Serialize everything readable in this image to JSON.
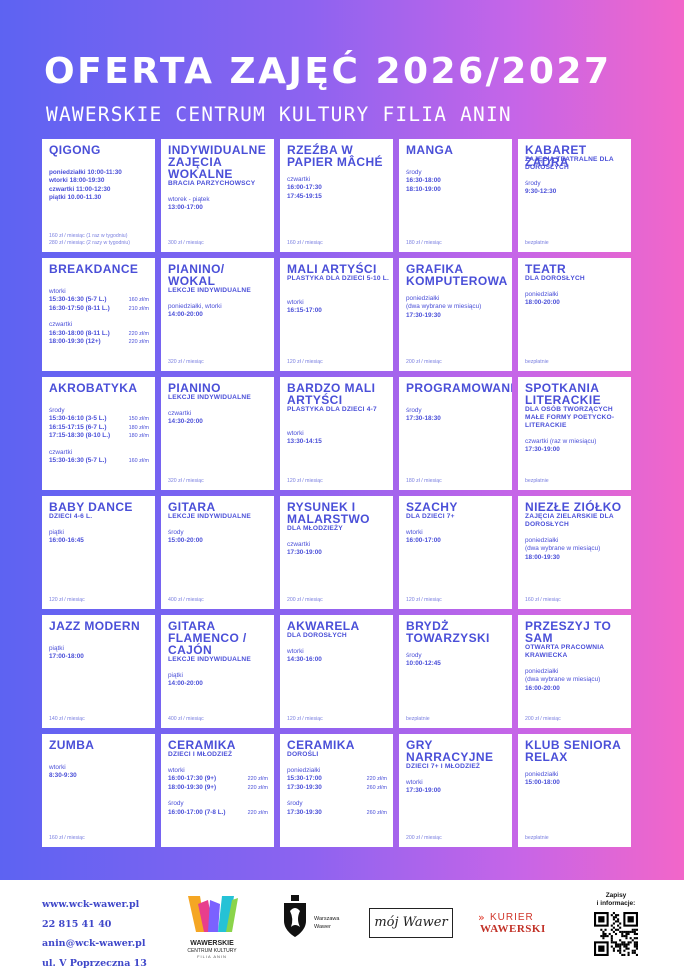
{
  "header": {
    "title": "OFERTA ZAJĘĆ 2026/2027",
    "subtitle": "WAWERSKIE CENTRUM KULTURY FILIA ANIN"
  },
  "cards": [
    {
      "name": "QIGONG",
      "sub": "",
      "lines": [
        [
          "poniedziałki 10:00-11:30",
          ""
        ],
        [
          "wtorki 18:00-19:30",
          ""
        ],
        [
          "czwartki 11:00-12:30",
          ""
        ],
        [
          "piątki 10.00-11.30",
          ""
        ]
      ],
      "price": "160 zł / miesiąc (1 raz w tygodniu)\n280 zł / miesiąc (2 razy w tygodniu)"
    },
    {
      "name": "INDYWIDUALNE ZAJĘCIA WOKALNE",
      "sub": "BRACIA PARZYCHOWSCY",
      "lines": [
        [
          "wtorek - piątek",
          ""
        ],
        [
          "13:00-17:00",
          ""
        ]
      ],
      "price": "300 zł / miesiąc"
    },
    {
      "name": "RZEŹBA W PAPIER MÂCHÉ",
      "sub": "",
      "lines": [
        [
          "czwartki",
          ""
        ],
        [
          "16:00-17:30",
          ""
        ],
        [
          "17:45-19:15",
          ""
        ]
      ],
      "price": "160 zł / miesiąc"
    },
    {
      "name": "MANGA",
      "sub": "",
      "lines": [
        [
          "środy",
          ""
        ],
        [
          "16:30-18:00",
          ""
        ],
        [
          "18:10-19:00",
          ""
        ]
      ],
      "price": "180 zł / miesiąc"
    },
    {
      "name": "KABARET ZADRA",
      "sub": "ZAJĘCIA TEATRALNE DLA DOROSŁYCH",
      "lines": [
        [
          "środy",
          ""
        ],
        [
          "9:30-12:30",
          ""
        ]
      ],
      "price": "bezpłatnie"
    },
    {
      "name": "BREAKDANCE",
      "sub": "",
      "lines": [
        [
          "wtorki",
          ""
        ],
        [
          "15:30-16:30 (5-7 L.)",
          "160 zł/m"
        ],
        [
          "16:30-17:50 (8-11 L.)",
          "210 zł/m"
        ],
        [
          "",
          ""
        ],
        [
          "czwartki",
          ""
        ],
        [
          "16:30-18:00 (8-11 L.)",
          "220 zł/m"
        ],
        [
          "18:00-19:30 (12+)",
          "220 zł/m"
        ]
      ],
      "price": ""
    },
    {
      "name": "PIANINO/ WOKAL",
      "sub": "LEKCJE INDYWIDUALNE",
      "lines": [
        [
          "poniedziałki, wtorki",
          ""
        ],
        [
          "14:00-20:00",
          ""
        ]
      ],
      "price": "320 zł / miesiąc"
    },
    {
      "name": "MALI ARTYŚCI",
      "sub": "PLASTYKA DLA DZIECI 5-10 L.",
      "lines": [
        [
          "wtorki",
          ""
        ],
        [
          "16:15-17:00",
          ""
        ]
      ],
      "price": "120 zł / miesiąc"
    },
    {
      "name": "GRAFIKA KOMPUTEROWA",
      "sub": "",
      "lines": [
        [
          "poniedziałki",
          ""
        ],
        [
          "(dwa wybrane w miesiącu)",
          ""
        ],
        [
          "17:30-19:30",
          ""
        ]
      ],
      "price": "200 zł / miesiąc"
    },
    {
      "name": "TEATR",
      "sub": "DLA DOROSŁYCH",
      "lines": [
        [
          "poniedziałki",
          ""
        ],
        [
          "18:00-20:00",
          ""
        ]
      ],
      "price": "bezpłatnie"
    },
    {
      "name": "AKROBATYKA",
      "sub": "",
      "lines": [
        [
          "środy",
          ""
        ],
        [
          "15:30-16:10 (3-5 L.)",
          "150 zł/m"
        ],
        [
          "16:15-17:15 (6-7 L.)",
          "180 zł/m"
        ],
        [
          "17:15-18:30 (8-10 L.)",
          "180 zł/m"
        ],
        [
          "",
          ""
        ],
        [
          "czwartki",
          ""
        ],
        [
          "15:30-16:30 (5-7 L.)",
          "160 zł/m"
        ]
      ],
      "price": ""
    },
    {
      "name": "PIANINO",
      "sub": "LEKCJE INDYWIDUALNE",
      "lines": [
        [
          "czwartki",
          ""
        ],
        [
          "14:30-20:00",
          ""
        ]
      ],
      "price": "320 zł / miesiąc"
    },
    {
      "name": "BARDZO MALI ARTYŚCI",
      "sub": "PLASTYKA DLA DZIECI 4-7",
      "lines": [
        [
          "wtorki",
          ""
        ],
        [
          "13:30-14:15",
          ""
        ]
      ],
      "price": "120 zł / miesiąc"
    },
    {
      "name": "PROGRAMOWANIE",
      "sub": "",
      "lines": [
        [
          "środy",
          ""
        ],
        [
          "17:30-18:30",
          ""
        ]
      ],
      "price": "180 zł / miesiąc"
    },
    {
      "name": "SPOTKANIA LITERACKIE",
      "sub": "DLA OSÓB TWORZĄCYCH MAŁE FORMY POETYCKO-LITERACKIE",
      "lines": [
        [
          "czwartki (raz w miesiącu)",
          ""
        ],
        [
          "17:30-19:00",
          ""
        ]
      ],
      "price": "bezpłatnie"
    },
    {
      "name": "BABY DANCE",
      "sub": "DZIECI 4-6 L.",
      "lines": [
        [
          "piątki",
          ""
        ],
        [
          "16:00-16:45",
          ""
        ]
      ],
      "price": "120 zł / miesiąc"
    },
    {
      "name": "GITARA",
      "sub": "LEKCJE INDYWIDUALNE",
      "lines": [
        [
          "środy",
          ""
        ],
        [
          "15:00-20:00",
          ""
        ]
      ],
      "price": "400 zł / miesiąc"
    },
    {
      "name": "RYSUNEK I MALARSTWO",
      "sub": "DLA MŁODZIEŻY",
      "lines": [
        [
          "czwartki",
          ""
        ],
        [
          "17:30-19:00",
          ""
        ]
      ],
      "price": "200 zł / miesiąc"
    },
    {
      "name": "SZACHY",
      "sub": "DLA DZIECI 7+",
      "lines": [
        [
          "wtorki",
          ""
        ],
        [
          "16:00-17:00",
          ""
        ]
      ],
      "price": "120 zł / miesiąc"
    },
    {
      "name": "NIEZŁE ZIÓŁKO",
      "sub": "ZAJĘCIA ZIELARSKIE DLA DOROSŁYCH",
      "lines": [
        [
          "poniedziałki",
          ""
        ],
        [
          "(dwa wybrane w miesiącu)",
          ""
        ],
        [
          "18:00-19:30",
          ""
        ]
      ],
      "price": "160 zł / miesiąc"
    },
    {
      "name": "JAZZ MODERN",
      "sub": "",
      "lines": [
        [
          "piątki",
          ""
        ],
        [
          "17:00-18:00",
          ""
        ]
      ],
      "price": "140 zł / miesiąc"
    },
    {
      "name": "GITARA FLAMENCO / CAJÓN",
      "sub": "LEKCJE INDYWIDUALNE",
      "lines": [
        [
          "piątki",
          ""
        ],
        [
          "14:00-20:00",
          ""
        ]
      ],
      "price": "400 zł / miesiąc"
    },
    {
      "name": "AKWARELA",
      "sub": "DLA DOROSŁYCH",
      "lines": [
        [
          "wtorki",
          ""
        ],
        [
          "14:30-16:00",
          ""
        ]
      ],
      "price": "120 zł / miesiąc"
    },
    {
      "name": "BRYDŻ TOWARZYSKI",
      "sub": "",
      "lines": [
        [
          "środy",
          ""
        ],
        [
          "10:00-12:45",
          ""
        ]
      ],
      "price": "bezpłatnie"
    },
    {
      "name": "PRZESZYJ TO SAM",
      "sub": "OTWARTA PRACOWNIA KRAWIECKA",
      "lines": [
        [
          "poniedziałki",
          ""
        ],
        [
          "(dwa wybrane w miesiącu)",
          ""
        ],
        [
          "16:00-20:00",
          ""
        ]
      ],
      "price": "200 zł / miesiąc"
    },
    {
      "name": "ZUMBA",
      "sub": "",
      "lines": [
        [
          "wtorki",
          ""
        ],
        [
          "8:30-9:30",
          ""
        ]
      ],
      "price": "160 zł / miesiąc"
    },
    {
      "name": "CERAMIKA",
      "sub": "DZIECI I MŁODZIEŻ",
      "lines": [
        [
          "wtorki",
          ""
        ],
        [
          "16:00-17:30 (9+)",
          "220 zł/m"
        ],
        [
          "18:00-19:30 (9+)",
          "220 zł/m"
        ],
        [
          "",
          ""
        ],
        [
          "środy",
          ""
        ],
        [
          "16:00-17:00 (7-8 L.)",
          "220 zł/m"
        ]
      ],
      "price": ""
    },
    {
      "name": "CERAMIKA",
      "sub": "DOROŚLI",
      "lines": [
        [
          "poniedziałki",
          ""
        ],
        [
          "15:30-17:00",
          "220 zł/m"
        ],
        [
          "17:30-19:30",
          "260 zł/m"
        ],
        [
          "",
          ""
        ],
        [
          "środy",
          ""
        ],
        [
          "17:30-19:30",
          "260 zł/m"
        ]
      ],
      "price": ""
    },
    {
      "name": "GRY NARRACYJNE",
      "sub": "DZIECI 7+ I MŁODZIEŻ",
      "lines": [
        [
          "wtorki",
          ""
        ],
        [
          "17:30-19:00",
          ""
        ]
      ],
      "price": "200 zł / miesiąc"
    },
    {
      "name": "KLUB SENIORA RELAX",
      "sub": "",
      "lines": [
        [
          "poniedziałki",
          ""
        ],
        [
          "15:00-18:00",
          ""
        ]
      ],
      "price": "bezpłatnie"
    }
  ],
  "footer": {
    "website": "www.wck-wawer.pl",
    "phone": "22 815 41 40",
    "email": "anin@wck-wawer.pl",
    "address": "ul. V Poprzeczna 13",
    "logo_wck_line1": "WAWERSKIE",
    "logo_wck_line2": "CENTRUM KULTURY",
    "logo_wck_line3": "FILIA ANIN",
    "logo_wawer_line1": "Warszawa",
    "logo_wawer_line2": "Wawer",
    "logo_script": "mój Wawer",
    "logo_kurier_line1": "KURIER",
    "logo_kurier_line2": "WAWERSKI",
    "qr_label_line1": "Zapisy",
    "qr_label_line2": "i informacje:"
  },
  "colors": {
    "text": "#4a4fd8",
    "contact": "#3f47c9",
    "grad_left": "#5d63f2",
    "grad_right": "#f266c9"
  }
}
